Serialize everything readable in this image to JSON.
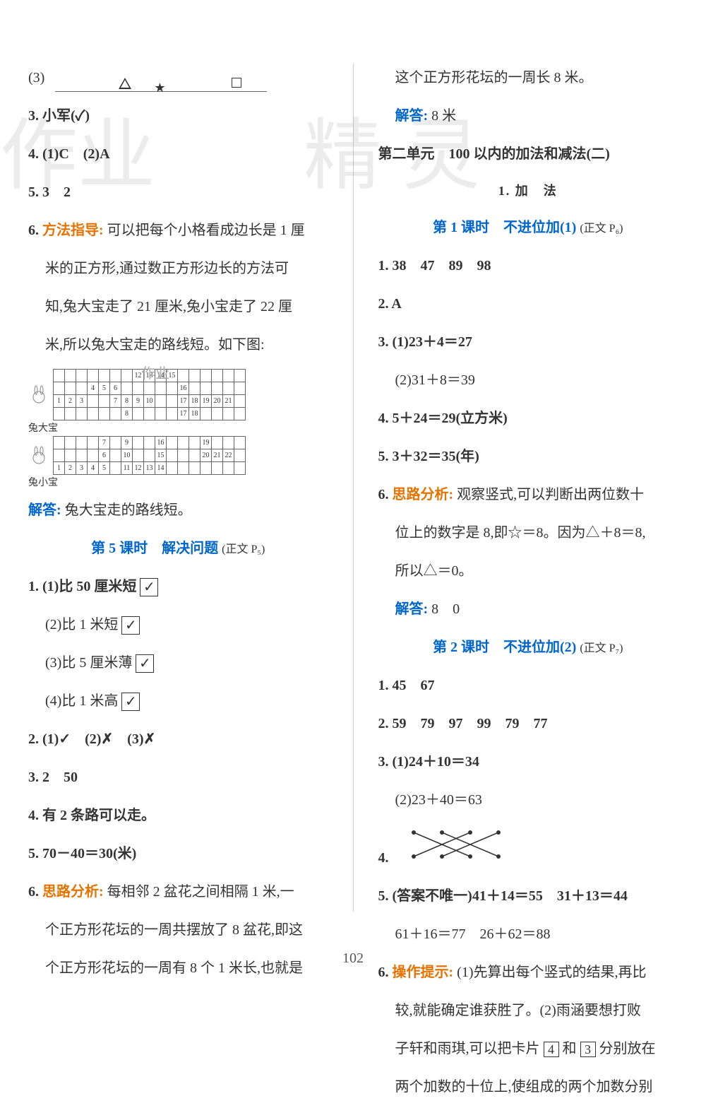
{
  "page_number": "102",
  "watermark_left": "作业",
  "watermark_right": "精灵",
  "left": {
    "q_tri": "(3)",
    "q3": "3. 小军(✓)",
    "q4": "4. (1)C　(2)A",
    "q5": "5. 3　2",
    "q6_label": "6.",
    "q6_method_label": "方法指导:",
    "q6_text_a": "可以把每个小格看成边长是 1 厘",
    "q6_text_b": "米的正方形,通过数正方形边长的方法可",
    "q6_text_c": "知,兔大宝走了 21 厘米,兔小宝走了 22 厘",
    "q6_text_d": "米,所以兔大宝走的路线短。如下图:",
    "grid_small_wm": "作业",
    "rabbit_big": "兔大宝",
    "rabbit_small": "兔小宝",
    "grid_big_top": [
      "",
      "",
      "",
      "",
      "",
      "",
      "",
      "12",
      "13",
      "14",
      "15",
      "",
      "",
      "",
      "",
      "",
      ""
    ],
    "grid_big_r1": [
      "",
      "",
      "",
      "4",
      "5",
      "6",
      "",
      "",
      "",
      "",
      "",
      "16",
      "",
      "",
      "",
      "",
      ""
    ],
    "grid_big_r2": [
      "1",
      "2",
      "3",
      "",
      "",
      "7",
      "8",
      "9",
      "10",
      "",
      "",
      "17",
      "18",
      "19",
      "20",
      "21",
      ""
    ],
    "grid_big_r3": [
      "",
      "",
      "",
      "",
      "",
      "",
      "8",
      "",
      "",
      "",
      "",
      "17",
      "18",
      "",
      "",
      "",
      ""
    ],
    "grid_sm_r1": [
      "",
      "",
      "",
      "",
      "7",
      "",
      "9",
      "",
      "",
      "16",
      "",
      "",
      "",
      "19",
      "",
      "",
      ""
    ],
    "grid_sm_r2": [
      "",
      "",
      "",
      "",
      "6",
      "",
      "10",
      "",
      "",
      "15",
      "",
      "",
      "",
      "20",
      "21",
      "22",
      ""
    ],
    "grid_sm_r3": [
      "1",
      "2",
      "3",
      "4",
      "5",
      "",
      "11",
      "12",
      "13",
      "14",
      "",
      "",
      "",
      "",
      "",
      "",
      ""
    ],
    "q6_ans_label": "解答:",
    "q6_ans": "兔大宝走的路线短。",
    "sec5_title": "第 5 课时　解决问题",
    "sec5_ref": "(正文 P₅)",
    "s5_q1_1": "1. (1)比 50 厘米短",
    "s5_q1_2": "(2)比 1 米短",
    "s5_q1_3": "(3)比 5 厘米薄",
    "s5_q1_4": "(4)比 1 米高",
    "check": "✓",
    "s5_q2": "2. (1)✓　(2)✗　(3)✗",
    "s5_q3": "3. 2　50",
    "s5_q4": "4. 有 2 条路可以走。",
    "s5_q5": "5. 70－40＝30(米)",
    "s5_q6_label": "6.",
    "s5_q6_think": "思路分析:",
    "s5_q6_a": "每相邻 2 盆花之间相隔 1 米,一",
    "s5_q6_b": "个正方形花坛的一周共摆放了 8 盆花,即这",
    "s5_q6_c": "个正方形花坛的一周有 8 个 1 米长,也就是"
  },
  "right": {
    "top_a": "这个正方形花坛的一周长 8 米。",
    "top_ans_label": "解答:",
    "top_ans": "8 米",
    "unit_title": "第二单元　100 以内的加法和减法(二)",
    "sub1": "1. 加　法",
    "sec1_title": "第 1 课时　不进位加(1)",
    "sec1_ref": "(正文 P₆)",
    "r1_q1": "1. 38　47　89　98",
    "r1_q2": "2. A",
    "r1_q3a": "3. (1)23＋4＝27",
    "r1_q3b": "(2)31＋8＝39",
    "r1_q4": "4. 5＋24＝29(立方米)",
    "r1_q5": "5. 3＋32＝35(年)",
    "r1_q6_label": "6.",
    "r1_q6_think": "思路分析:",
    "r1_q6_a": "观察竖式,可以判断出两位数十",
    "r1_q6_b": "位上的数字是 8,即☆＝8。因为△＋8＝8,",
    "r1_q6_c": "所以△＝0。",
    "r1_q6_ans_label": "解答:",
    "r1_q6_ans": "8　0",
    "sec2_title": "第 2 课时　不进位加(2)",
    "sec2_ref": "(正文 P₇)",
    "r2_q1": "1. 45　67",
    "r2_q2": "2. 59　79　97　99　79　77",
    "r2_q3a": "3. (1)24＋10＝34",
    "r2_q3b": "(2)23＋40＝63",
    "r2_q4_label": "4.",
    "r2_q5": "5. (答案不唯一)41＋14＝55　31＋13＝44",
    "r2_q5b": "61＋16＝77　26＋62＝88",
    "r2_q6_label": "6.",
    "r2_q6_op": "操作提示:",
    "r2_q6_a": "(1)先算出每个竖式的结果,再比",
    "r2_q6_b": "较,就能确定谁获胜了。(2)雨涵要想打败",
    "r2_q6_c1": "子轩和雨琪,可以把卡片",
    "r2_q6_box1": "4",
    "r2_q6_c2": "和",
    "r2_q6_box2": "3",
    "r2_q6_c3": "分别放在",
    "r2_q6_d": "两个加数的十位上,使组成的两个加数分别"
  }
}
